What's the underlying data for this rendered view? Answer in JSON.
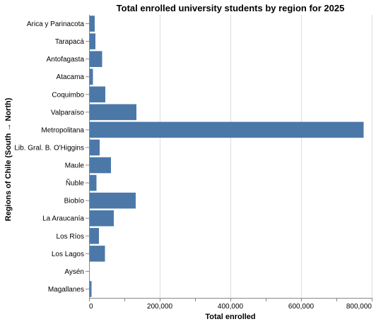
{
  "chart_data": {
    "type": "bar",
    "orientation": "horizontal",
    "title": "Total enrolled university students by region for 2025",
    "xlabel": "Total enrolled",
    "ylabel": "Regions of Chile (South → North)",
    "xlim": [
      0,
      800000
    ],
    "x_ticks": [
      0,
      200000,
      400000,
      600000,
      800000
    ],
    "x_tick_labels": [
      "0",
      "200,000",
      "400,000",
      "600,000",
      "800,000"
    ],
    "grid": true,
    "bar_color": "#4c78a8",
    "categories": [
      "Arica y Parinacota",
      "Tarapacá",
      "Antofagasta",
      "Atacama",
      "Coquimbo",
      "Valparaíso",
      "Metropolitana",
      "Lib. Gral. B. O'Higgins",
      "Maule",
      "Ñuble",
      "Biobío",
      "La Araucanía",
      "Los Ríos",
      "Los Lagos",
      "Aysén",
      "Magallanes"
    ],
    "values": [
      16000,
      18000,
      37000,
      11000,
      46000,
      134000,
      777000,
      30000,
      62000,
      21000,
      132000,
      70000,
      28000,
      45000,
      2000,
      7000
    ]
  }
}
